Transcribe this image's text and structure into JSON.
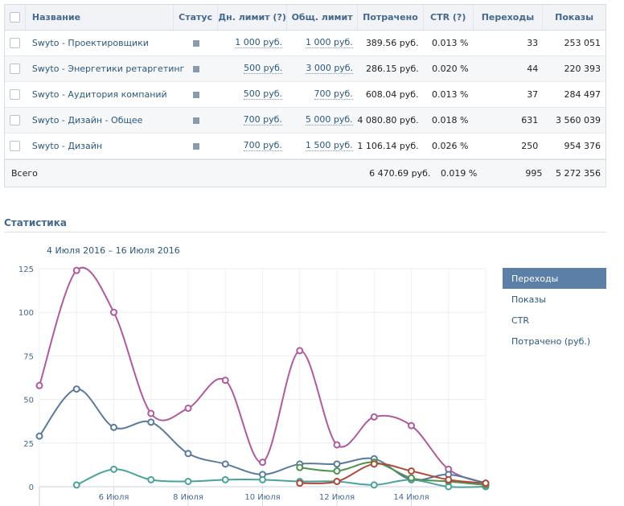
{
  "table": {
    "headers": {
      "name": "Название",
      "status": "Статус",
      "day_limit": "Дн. лимит (?)",
      "total_limit": "Общ. лимит",
      "spent": "Потрачено",
      "ctr": "CTR (?)",
      "clicks": "Переходы",
      "shows": "Показы"
    },
    "rows": [
      {
        "name": "Swyto - Проектировщики",
        "day_limit": "1 000 руб.",
        "total_limit": "1 000 руб.",
        "spent": "389.56 руб.",
        "ctr": "0.013 %",
        "clicks": "33",
        "shows": "253 051"
      },
      {
        "name": "Swyto - Энергетики ретаргетинг",
        "day_limit": "500 руб.",
        "total_limit": "3 000 руб.",
        "spent": "286.15 руб.",
        "ctr": "0.020 %",
        "clicks": "44",
        "shows": "220 393"
      },
      {
        "name": "Swyto - Аудитория компаний",
        "day_limit": "500 руб.",
        "total_limit": "700 руб.",
        "spent": "608.04 руб.",
        "ctr": "0.013 %",
        "clicks": "37",
        "shows": "284 497"
      },
      {
        "name": "Swyto - Дизайн - Общее",
        "day_limit": "700 руб.",
        "total_limit": "5 000 руб.",
        "spent": "4 080.80 руб.",
        "ctr": "0.018 %",
        "clicks": "631",
        "shows": "3 560 039"
      },
      {
        "name": "Swyto - Дизайн",
        "day_limit": "700 руб.",
        "total_limit": "1 500 руб.",
        "spent": "1 106.14 руб.",
        "ctr": "0.026 %",
        "clicks": "250",
        "shows": "954 376"
      }
    ],
    "total": {
      "label": "Всего",
      "spent": "6 470.69 руб.",
      "ctr": "0.019 %",
      "clicks": "995",
      "shows": "5 272 356"
    }
  },
  "stats": {
    "title": "Статистика",
    "date_range": "4 Июля 2016 – 16 Июля 2016",
    "legend": [
      "Переходы",
      "Показы",
      "CTR",
      "Потрачено (руб.)"
    ],
    "active_legend": "Переходы"
  },
  "colors": {
    "magenta": "#b05a9e",
    "blue": "#5a7a9c",
    "teal": "#4aa39a",
    "green": "#4f9150",
    "red": "#b04a3c"
  },
  "chart_data": {
    "type": "line",
    "x": [
      "4 Июля",
      "5 Июля",
      "6 Июля",
      "7 Июля",
      "8 Июля",
      "9 Июля",
      "10 Июля",
      "11 Июля",
      "12 Июля",
      "13 Июля",
      "14 Июля",
      "15 Июля",
      "16 Июля"
    ],
    "x_tick_labels": [
      "6 Июля",
      "8 Июля",
      "10 Июля",
      "12 Июля",
      "14 Июля"
    ],
    "y_ticks": [
      0,
      25,
      50,
      75,
      100,
      125
    ],
    "ylim": [
      0,
      125
    ],
    "series": [
      {
        "color": "#b05a9e",
        "points": [
          [
            0,
            58
          ],
          [
            1,
            124
          ],
          [
            2,
            100
          ],
          [
            3,
            42
          ],
          [
            4,
            45
          ],
          [
            5,
            61
          ],
          [
            6,
            14
          ],
          [
            7,
            78
          ],
          [
            8,
            24
          ],
          [
            9,
            40
          ],
          [
            10,
            35
          ],
          [
            11,
            10
          ],
          [
            12,
            2
          ]
        ]
      },
      {
        "color": "#5a7a9c",
        "points": [
          [
            0,
            29
          ],
          [
            1,
            56
          ],
          [
            2,
            34
          ],
          [
            3,
            37
          ],
          [
            4,
            19
          ],
          [
            5,
            13
          ],
          [
            6,
            7
          ],
          [
            7,
            13
          ],
          [
            8,
            13
          ],
          [
            9,
            16
          ],
          [
            10,
            4
          ],
          [
            11,
            7
          ],
          [
            12,
            2
          ]
        ]
      },
      {
        "color": "#4aa39a",
        "points": [
          [
            1,
            1
          ],
          [
            2,
            10
          ],
          [
            3,
            4
          ],
          [
            4,
            3
          ],
          [
            5,
            4
          ],
          [
            6,
            4
          ],
          [
            7,
            3
          ],
          [
            8,
            3
          ],
          [
            9,
            1
          ],
          [
            10,
            4
          ],
          [
            11,
            0
          ],
          [
            12,
            0
          ]
        ]
      },
      {
        "color": "#4f9150",
        "points": [
          [
            7,
            11
          ],
          [
            8,
            9
          ],
          [
            9,
            14
          ],
          [
            10,
            5
          ],
          [
            11,
            3
          ],
          [
            12,
            1
          ]
        ]
      },
      {
        "color": "#b04a3c",
        "points": [
          [
            7,
            2
          ],
          [
            8,
            3
          ],
          [
            9,
            13
          ],
          [
            10,
            9
          ],
          [
            11,
            4
          ],
          [
            12,
            2
          ]
        ]
      }
    ]
  }
}
